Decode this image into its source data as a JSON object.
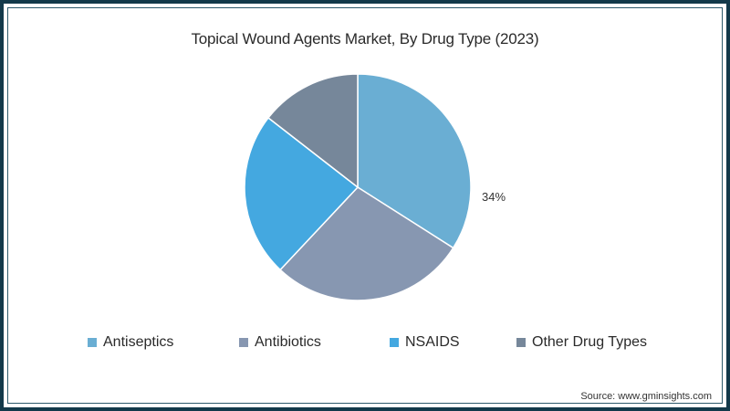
{
  "title": "Topical Wound Agents Market, By Drug Type (2023)",
  "source": "Source: www.gminsights.com",
  "chart_data": {
    "type": "pie",
    "title": "Topical Wound Agents Market, By Drug Type (2023)",
    "categories": [
      "Antiseptics",
      "Antibiotics",
      "NSAIDS",
      "Other Drug Types"
    ],
    "values": [
      34,
      28,
      23.5,
      14.5
    ],
    "unit": "%",
    "colors": [
      "#6aaed3",
      "#8797b1",
      "#44a8e0",
      "#76879a"
    ],
    "data_labels": [
      {
        "category": "Antiseptics",
        "text": "34%"
      }
    ],
    "start_angle": "12 o'clock, clockwise",
    "legend_position": "bottom"
  },
  "labels": {
    "antiseptics_pct": "34%"
  },
  "legend": [
    {
      "label": "Antiseptics",
      "color": "#6aaed3"
    },
    {
      "label": "Antibiotics",
      "color": "#8797b1"
    },
    {
      "label": "NSAIDS",
      "color": "#44a8e0"
    },
    {
      "label": "Other Drug Types",
      "color": "#76879a"
    }
  ]
}
